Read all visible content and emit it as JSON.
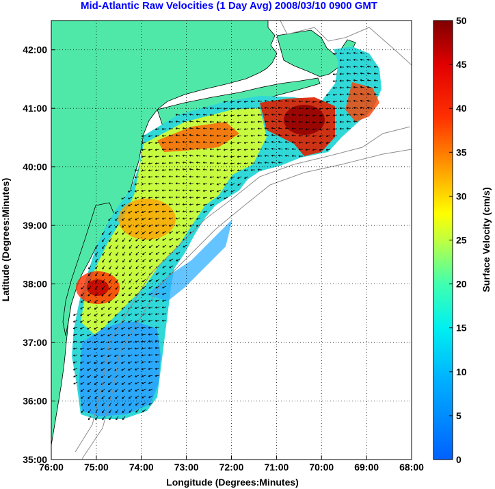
{
  "title": "Mid-Atlantic Raw Velocities (1 Day Avg) 2008/03/10 0900 GMT",
  "map": {
    "x_label": "Longitude (Degrees:Minutes)",
    "y_label": "Latitude (Degrees:Minutes)",
    "x_range": [
      -76,
      -68
    ],
    "y_range": [
      35,
      42.5
    ],
    "x_ticks": [
      "76:00",
      "75:00",
      "74:00",
      "73:00",
      "72:00",
      "71:00",
      "70:00",
      "69:00",
      "68:00"
    ],
    "y_ticks": [
      "35:00",
      "36:00",
      "37:00",
      "38:00",
      "39:00",
      "40:00",
      "41:00",
      "42:00"
    ],
    "grid": "dotted",
    "land_color": "#50e8a8",
    "ocean_color": "#ffffff",
    "vector_color": "#000000"
  },
  "colorbar": {
    "label": "Surface Velocity (cm/s)",
    "min": 0,
    "max": 50,
    "ticks": [
      "0",
      "5",
      "10",
      "15",
      "20",
      "25",
      "30",
      "35",
      "40",
      "45",
      "50"
    ],
    "colormap": "jet"
  }
}
